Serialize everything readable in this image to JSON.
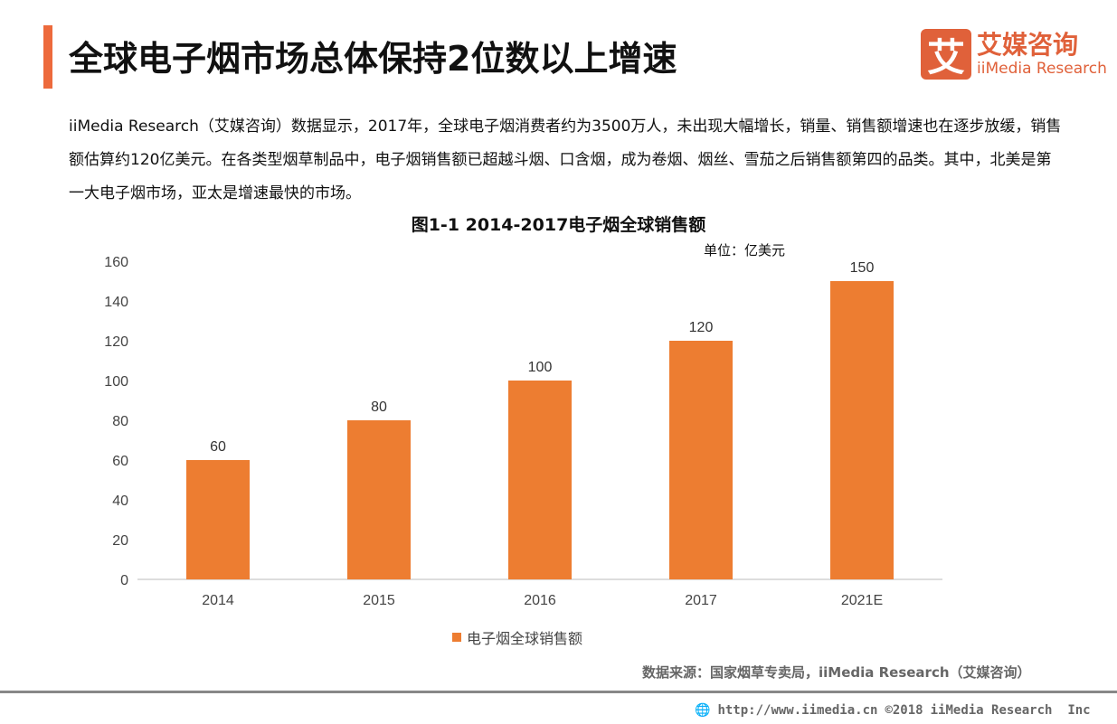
{
  "header": {
    "title": "全球电子烟市场总体保持2位数以上增速",
    "logo_cn": "艾媒咨询",
    "logo_en": "iiMedia Research",
    "logo_mark": "艾"
  },
  "paragraph": "iiMedia Research（艾媒咨询）数据显示，2017年，全球电子烟消费者约为3500万人，未出现大幅增长，销量、销售额增速也在逐步放缓，销售额估算约120亿美元。在各类型烟草制品中，电子烟销售额已超越斗烟、口含烟，成为卷烟、烟丝、雪茄之后销售额第四的品类。其中，北美是第一大电子烟市场，亚太是增速最快的市场。",
  "chart_data": {
    "type": "bar",
    "title": "图1-1 2014-2017电子烟全球销售额",
    "unit": "单位：亿美元",
    "categories": [
      "2014",
      "2015",
      "2016",
      "2017",
      "2021E"
    ],
    "series": [
      {
        "name": "电子烟全球销售额",
        "values": [
          60,
          80,
          100,
          120,
          150
        ]
      }
    ],
    "ylim": [
      0,
      160
    ],
    "yticks": [
      0,
      20,
      40,
      60,
      80,
      100,
      120,
      140,
      160
    ],
    "grid": false,
    "legend": "bottom",
    "color": "#ed7d31"
  },
  "footer": {
    "source": "数据来源：国家烟草专卖局，iiMedia Research（艾媒咨询）",
    "url": "http://www.iimedia.cn",
    "copyright": "©2018",
    "company": "iiMedia Research  Inc"
  }
}
